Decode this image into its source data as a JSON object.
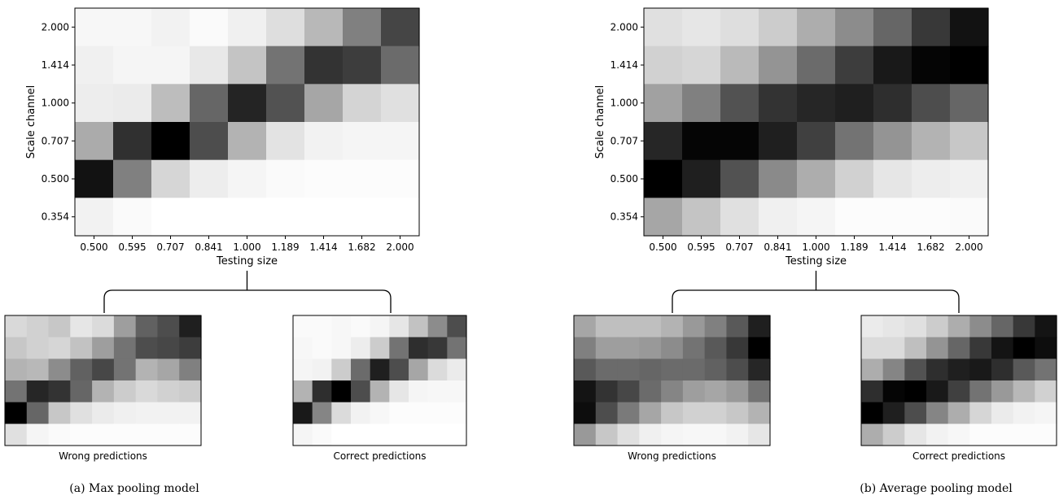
{
  "chart_data": [
    {
      "type": "heatmap",
      "id": "max-main",
      "xlabel": "Testing size",
      "ylabel": "Scale channel",
      "x_ticks": [
        "0.500",
        "0.595",
        "0.707",
        "0.841",
        "1.000",
        "1.189",
        "1.414",
        "1.682",
        "2.000"
      ],
      "y_ticks": [
        "2.000",
        "1.414",
        "1.000",
        "0.707",
        "0.500",
        "0.354"
      ],
      "colormap": "gray_r",
      "values": [
        [
          0.03,
          0.03,
          0.05,
          0.02,
          0.06,
          0.13,
          0.28,
          0.5,
          0.73
        ],
        [
          0.06,
          0.04,
          0.04,
          0.09,
          0.23,
          0.55,
          0.8,
          0.76,
          0.58
        ],
        [
          0.07,
          0.08,
          0.26,
          0.6,
          0.86,
          0.68,
          0.35,
          0.17,
          0.12
        ],
        [
          0.33,
          0.81,
          1.0,
          0.7,
          0.3,
          0.11,
          0.05,
          0.04,
          0.04
        ],
        [
          0.93,
          0.5,
          0.16,
          0.07,
          0.04,
          0.02,
          0.01,
          0.01,
          0.01
        ],
        [
          0.05,
          0.02,
          0.0,
          0.0,
          0.0,
          0.0,
          0.0,
          0.0,
          0.0
        ]
      ]
    },
    {
      "type": "heatmap",
      "id": "max-wrong",
      "label": "Wrong predictions",
      "colormap": "gray_r",
      "values": [
        [
          0.15,
          0.18,
          0.22,
          0.1,
          0.14,
          0.38,
          0.62,
          0.7,
          0.88
        ],
        [
          0.22,
          0.18,
          0.16,
          0.24,
          0.38,
          0.55,
          0.7,
          0.72,
          0.76
        ],
        [
          0.3,
          0.28,
          0.45,
          0.62,
          0.72,
          0.55,
          0.3,
          0.35,
          0.5
        ],
        [
          0.55,
          0.85,
          0.8,
          0.6,
          0.3,
          0.2,
          0.15,
          0.18,
          0.2
        ],
        [
          1.0,
          0.6,
          0.22,
          0.12,
          0.08,
          0.06,
          0.05,
          0.05,
          0.05
        ],
        [
          0.12,
          0.04,
          0.02,
          0.01,
          0.01,
          0.01,
          0.01,
          0.01,
          0.01
        ]
      ]
    },
    {
      "type": "heatmap",
      "id": "max-correct",
      "label": "Correct predictions",
      "colormap": "gray_r",
      "values": [
        [
          0.02,
          0.02,
          0.03,
          0.02,
          0.04,
          0.1,
          0.24,
          0.45,
          0.7
        ],
        [
          0.03,
          0.02,
          0.03,
          0.07,
          0.2,
          0.55,
          0.82,
          0.78,
          0.55
        ],
        [
          0.04,
          0.05,
          0.2,
          0.58,
          0.88,
          0.7,
          0.35,
          0.14,
          0.08
        ],
        [
          0.3,
          0.82,
          1.0,
          0.7,
          0.3,
          0.1,
          0.04,
          0.03,
          0.03
        ],
        [
          0.9,
          0.48,
          0.14,
          0.05,
          0.03,
          0.01,
          0.01,
          0.01,
          0.01
        ],
        [
          0.04,
          0.02,
          0.0,
          0.0,
          0.0,
          0.0,
          0.0,
          0.0,
          0.0
        ]
      ]
    },
    {
      "type": "heatmap",
      "id": "avg-main",
      "xlabel": "Testing size",
      "ylabel": "Scale channel",
      "x_ticks": [
        "0.500",
        "0.595",
        "0.707",
        "0.841",
        "1.000",
        "1.189",
        "1.414",
        "1.682",
        "2.000"
      ],
      "y_ticks": [
        "2.000",
        "1.414",
        "1.000",
        "0.707",
        "0.500",
        "0.354"
      ],
      "colormap": "gray_r",
      "values": [
        [
          0.12,
          0.1,
          0.13,
          0.2,
          0.32,
          0.45,
          0.6,
          0.78,
          0.93
        ],
        [
          0.18,
          0.16,
          0.27,
          0.42,
          0.58,
          0.76,
          0.9,
          0.98,
          1.0
        ],
        [
          0.37,
          0.5,
          0.68,
          0.8,
          0.85,
          0.88,
          0.82,
          0.7,
          0.6
        ],
        [
          0.85,
          0.98,
          0.98,
          0.88,
          0.75,
          0.55,
          0.42,
          0.3,
          0.22
        ],
        [
          1.0,
          0.88,
          0.68,
          0.46,
          0.32,
          0.18,
          0.1,
          0.07,
          0.06
        ],
        [
          0.35,
          0.23,
          0.12,
          0.06,
          0.04,
          0.01,
          0.01,
          0.01,
          0.02
        ]
      ]
    },
    {
      "type": "heatmap",
      "id": "avg-wrong",
      "label": "Wrong predictions",
      "colormap": "gray_r",
      "values": [
        [
          0.35,
          0.25,
          0.25,
          0.25,
          0.3,
          0.4,
          0.5,
          0.65,
          0.88
        ],
        [
          0.5,
          0.38,
          0.38,
          0.4,
          0.45,
          0.55,
          0.65,
          0.78,
          1.0
        ],
        [
          0.65,
          0.58,
          0.58,
          0.6,
          0.58,
          0.58,
          0.62,
          0.7,
          0.85
        ],
        [
          0.92,
          0.8,
          0.72,
          0.58,
          0.48,
          0.38,
          0.35,
          0.4,
          0.55
        ],
        [
          0.95,
          0.7,
          0.52,
          0.35,
          0.22,
          0.18,
          0.18,
          0.22,
          0.3
        ],
        [
          0.4,
          0.22,
          0.12,
          0.06,
          0.04,
          0.03,
          0.03,
          0.05,
          0.1
        ]
      ]
    },
    {
      "type": "heatmap",
      "id": "avg-correct",
      "label": "Correct predictions",
      "colormap": "gray_r",
      "values": [
        [
          0.08,
          0.1,
          0.12,
          0.2,
          0.32,
          0.45,
          0.6,
          0.78,
          0.92
        ],
        [
          0.14,
          0.14,
          0.25,
          0.42,
          0.6,
          0.78,
          0.92,
          1.0,
          0.95
        ],
        [
          0.32,
          0.48,
          0.68,
          0.82,
          0.88,
          0.9,
          0.82,
          0.65,
          0.55
        ],
        [
          0.82,
          0.98,
          1.0,
          0.9,
          0.75,
          0.55,
          0.4,
          0.28,
          0.18
        ],
        [
          1.0,
          0.88,
          0.7,
          0.48,
          0.32,
          0.16,
          0.08,
          0.05,
          0.04
        ],
        [
          0.32,
          0.2,
          0.1,
          0.05,
          0.03,
          0.01,
          0.01,
          0.01,
          0.01
        ]
      ]
    }
  ],
  "captions": {
    "left": "(a) Max pooling model",
    "right": "(b) Average pooling model"
  }
}
